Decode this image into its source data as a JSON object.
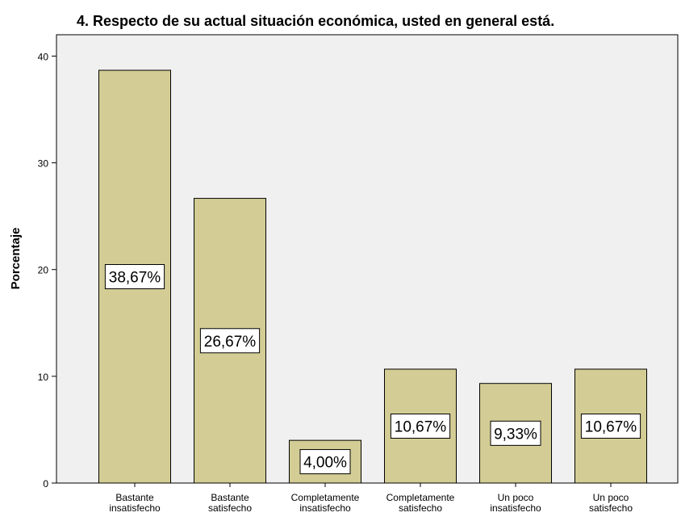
{
  "chart_data": {
    "type": "bar",
    "title": "4. Respecto de su actual situación económica, usted en general está.",
    "ylabel": "Porcentaje",
    "xlabel": "",
    "ylim": [
      0,
      42
    ],
    "yticks": [
      "0",
      "10",
      "20",
      "30",
      "40"
    ],
    "categories": [
      [
        "Bastante",
        "insatisfecho"
      ],
      [
        "Bastante",
        "satisfecho"
      ],
      [
        "Completamente",
        "insatisfecho"
      ],
      [
        "Completamente",
        "satisfecho"
      ],
      [
        "Un poco",
        "insatisfecho"
      ],
      [
        "Un poco",
        "satisfecho"
      ]
    ],
    "values": [
      38.67,
      26.67,
      4.0,
      10.67,
      9.33,
      10.67
    ],
    "data_labels": [
      "38,67%",
      "26,67%",
      "4,00%",
      "10,67%",
      "9,33%",
      "10,67%"
    ],
    "bar_color": "#d3cd95",
    "plot_background": "#f0f0f0",
    "grid": false,
    "legend": "none"
  }
}
